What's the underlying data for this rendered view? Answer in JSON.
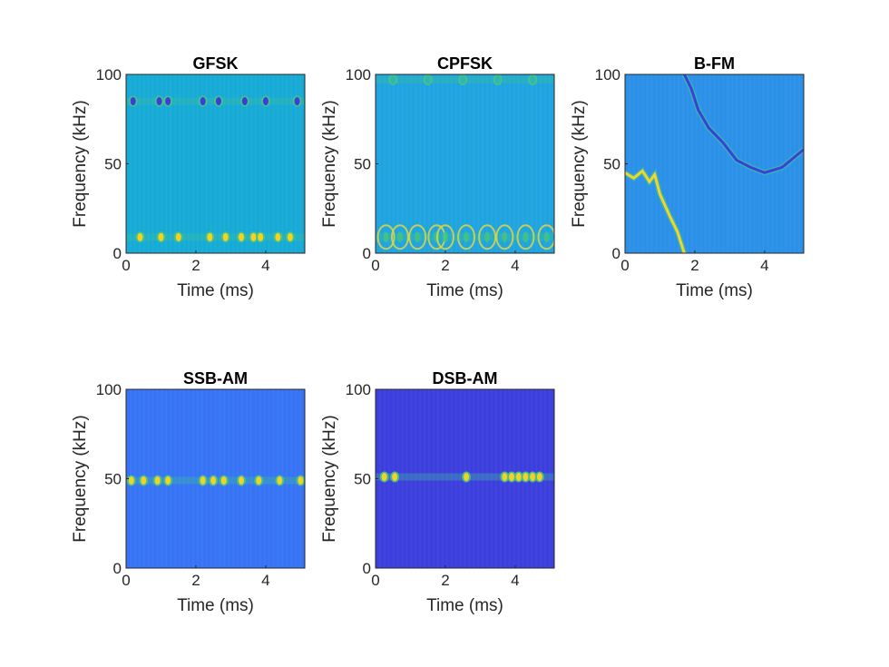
{
  "chart_data": [
    {
      "type": "heatmap",
      "title": "GFSK",
      "xlabel": "Time (ms)",
      "ylabel": "Frequency (kHz)",
      "xlim": [
        0,
        5.12
      ],
      "ylim": [
        0,
        100
      ],
      "xticks": [
        "0",
        "2",
        "4"
      ],
      "yticks": [
        "0",
        "50",
        "100"
      ],
      "background": "#16aad6",
      "features": [
        {
          "kind": "band",
          "f": 9,
          "t": [
            0.4,
            1.0,
            1.5,
            2.4,
            2.85,
            3.3,
            3.65,
            3.85,
            4.35,
            4.7
          ],
          "color": "#f5d21e"
        },
        {
          "kind": "band",
          "f": 85,
          "t": [
            0.2,
            0.95,
            1.2,
            2.2,
            2.65,
            3.4,
            4.0,
            4.9
          ],
          "color": "#3b3ed8"
        }
      ]
    },
    {
      "type": "heatmap",
      "title": "CPFSK",
      "xlabel": "Time (ms)",
      "ylabel": "Frequency (kHz)",
      "xlim": [
        0,
        5.12
      ],
      "ylim": [
        0,
        100
      ],
      "xticks": [
        "0",
        "2",
        "4"
      ],
      "yticks": [
        "0",
        "50",
        "100"
      ],
      "background": "#1fa4df",
      "features": [
        {
          "kind": "arcs",
          "f": 9,
          "t": [
            0.3,
            0.7,
            1.2,
            1.75,
            2.0,
            2.6,
            3.2,
            3.7,
            4.3,
            4.9
          ],
          "color": "#e8d83a"
        },
        {
          "kind": "band",
          "f": 97,
          "t": [
            0.5,
            1.5,
            2.5,
            3.5,
            4.5
          ],
          "color": "#2fb6b0"
        }
      ]
    },
    {
      "type": "heatmap",
      "title": "B-FM",
      "xlabel": "Time (ms)",
      "ylabel": "Frequency (kHz)",
      "xlim": [
        0,
        5.12
      ],
      "ylim": [
        0,
        100
      ],
      "xticks": [
        "0",
        "2",
        "4"
      ],
      "yticks": [
        "0",
        "50",
        "100"
      ],
      "background": "#2a90e8",
      "features": [
        {
          "kind": "curve",
          "color": "#f2d52a",
          "points": [
            [
              0,
              45
            ],
            [
              0.25,
              42
            ],
            [
              0.5,
              46
            ],
            [
              0.7,
              40
            ],
            [
              0.85,
              44
            ],
            [
              1.0,
              33
            ],
            [
              1.3,
              20
            ],
            [
              1.5,
              12
            ],
            [
              1.7,
              0
            ]
          ]
        },
        {
          "kind": "curve",
          "color": "#3b40d9",
          "points": [
            [
              1.7,
              100
            ],
            [
              1.9,
              92
            ],
            [
              2.1,
              80
            ],
            [
              2.4,
              70
            ],
            [
              2.8,
              62
            ],
            [
              3.2,
              52
            ],
            [
              3.6,
              48
            ],
            [
              4.0,
              45
            ],
            [
              4.5,
              48
            ],
            [
              5.12,
              58
            ]
          ]
        }
      ]
    },
    {
      "type": "heatmap",
      "title": "SSB-AM",
      "xlabel": "Time (ms)",
      "ylabel": "Frequency (kHz)",
      "xlim": [
        0,
        5.12
      ],
      "ylim": [
        0,
        100
      ],
      "xticks": [
        "0",
        "2",
        "4"
      ],
      "yticks": [
        "0",
        "50",
        "100"
      ],
      "background": "#3674f5",
      "features": [
        {
          "kind": "band",
          "f": 49,
          "t": [
            0.15,
            0.5,
            0.9,
            1.2,
            2.2,
            2.5,
            2.8,
            3.3,
            3.8,
            4.4,
            5.0
          ],
          "color": "#f0d22a"
        }
      ]
    },
    {
      "type": "heatmap",
      "title": "DSB-AM",
      "xlabel": "Time (ms)",
      "ylabel": "Frequency (kHz)",
      "xlim": [
        0,
        5.12
      ],
      "ylim": [
        0,
        100
      ],
      "xticks": [
        "0",
        "2",
        "4"
      ],
      "yticks": [
        "0",
        "50",
        "100"
      ],
      "background": "#3c3edd",
      "features": [
        {
          "kind": "band",
          "f": 51,
          "t": [
            0.25,
            0.55,
            2.6,
            3.7,
            3.9,
            4.1,
            4.3,
            4.5,
            4.7
          ],
          "color": "#f0d22a"
        }
      ]
    }
  ]
}
